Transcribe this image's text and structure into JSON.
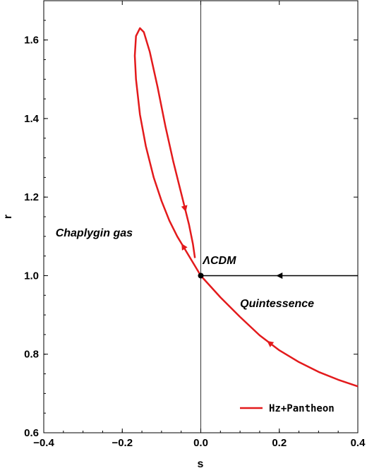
{
  "chart_data": {
    "type": "line",
    "xlabel": "s",
    "ylabel": "r",
    "xlim": [
      -0.4,
      0.4
    ],
    "ylim": [
      0.6,
      1.7
    ],
    "x_ticks": [
      -0.4,
      -0.2,
      0.0,
      0.2,
      0.4
    ],
    "x_tick_labels": [
      "−0.4",
      "−0.2",
      "0.0",
      "0.2",
      "0.4"
    ],
    "y_ticks": [
      0.6,
      0.8,
      1.0,
      1.2,
      1.4,
      1.6
    ],
    "y_tick_labels": [
      "0.6",
      "0.8",
      "1.0",
      "1.2",
      "1.4",
      "1.6"
    ],
    "grid": false,
    "legend_position": "bottom-right",
    "series": [
      {
        "name": "Hz+Pantheon",
        "color": "#e31a1c",
        "x": [
          0.4,
          0.35,
          0.3,
          0.25,
          0.2,
          0.15,
          0.1,
          0.05,
          0.0,
          -0.03,
          -0.06,
          -0.08,
          -0.1,
          -0.12,
          -0.14,
          -0.155,
          -0.165,
          -0.168,
          -0.165,
          -0.155,
          -0.145,
          -0.13,
          -0.11,
          -0.09,
          -0.07,
          -0.05,
          -0.03,
          -0.02,
          -0.015
        ],
        "y": [
          0.718,
          0.735,
          0.755,
          0.78,
          0.81,
          0.848,
          0.895,
          0.945,
          1.0,
          1.05,
          1.1,
          1.14,
          1.19,
          1.25,
          1.33,
          1.41,
          1.5,
          1.56,
          1.61,
          1.63,
          1.62,
          1.57,
          1.48,
          1.38,
          1.29,
          1.21,
          1.13,
          1.08,
          1.045
        ]
      },
      {
        "name": "",
        "color": "#000000",
        "x": [
          0.4,
          0.0
        ],
        "y": [
          1.0,
          1.0
        ]
      }
    ],
    "points": [
      {
        "x": 0.0,
        "y": 1.0
      }
    ],
    "annotations": [
      {
        "text": "Chaplygin gas",
        "x": -0.37,
        "y": 1.1
      },
      {
        "text": "ΛCDM",
        "x": 0.005,
        "y": 1.03
      },
      {
        "text": "Quintessence",
        "x": 0.1,
        "y": 0.92
      }
    ]
  }
}
